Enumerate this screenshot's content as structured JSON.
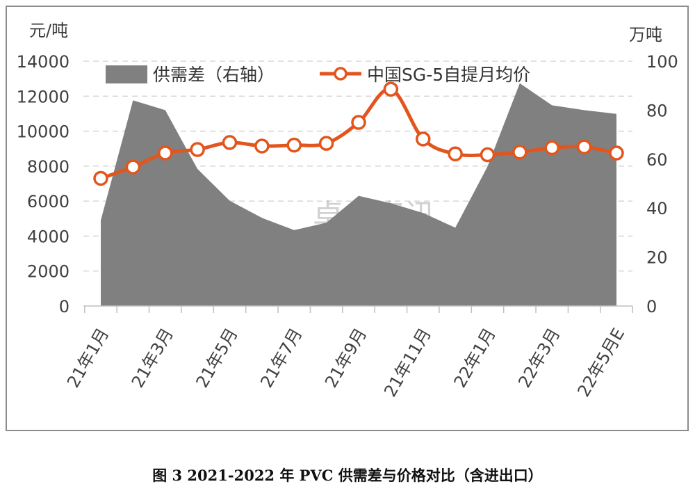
{
  "caption": "图 3 2021-2022 年 PVC 供需差与价格对比（含进出口）",
  "watermark": "卓创资讯",
  "colors": {
    "area": "#808080",
    "line": "#e2551d",
    "marker_fill": "#ffffff",
    "grid": "#cfcfcf"
  },
  "chart_data": {
    "type": "area+line",
    "title": "",
    "left_axis": {
      "label": "元/吨",
      "min": 0,
      "max": 14000,
      "ticks": [
        0,
        2000,
        4000,
        6000,
        8000,
        10000,
        12000,
        14000
      ]
    },
    "right_axis": {
      "label": "万吨",
      "min": 0,
      "max": 100,
      "ticks": [
        0,
        20,
        40,
        60,
        80,
        100
      ]
    },
    "categories": [
      "21年1月",
      "21年2月",
      "21年3月",
      "21年4月",
      "21年5月",
      "21年6月",
      "21年7月",
      "21年8月",
      "21年9月",
      "21年10月",
      "21年11月",
      "21年12月",
      "22年1月",
      "22年2月",
      "22年3月",
      "22年4月",
      "22年5月E"
    ],
    "x_tick_labels": [
      "21年1月",
      "21年3月",
      "21年5月",
      "21年7月",
      "21年9月",
      "21年11月",
      "22年1月",
      "22年3月",
      "22年5月E"
    ],
    "series": [
      {
        "name": "供需差（右轴）",
        "type": "area",
        "axis": "right",
        "values": [
          35,
          84,
          80,
          56,
          43,
          36,
          31,
          34,
          45,
          42,
          38,
          32,
          57,
          91,
          82,
          80,
          78.5
        ]
      },
      {
        "name": "中国SG-5自提月均价",
        "type": "line",
        "axis": "left",
        "values": [
          7300,
          7950,
          8750,
          8950,
          9350,
          9150,
          9200,
          9300,
          10500,
          12400,
          9550,
          8700,
          8650,
          8800,
          9050,
          9100,
          8750
        ]
      }
    ],
    "legend": [
      "供需差（右轴）",
      "中国SG-5自提月均价"
    ],
    "grid": true
  }
}
